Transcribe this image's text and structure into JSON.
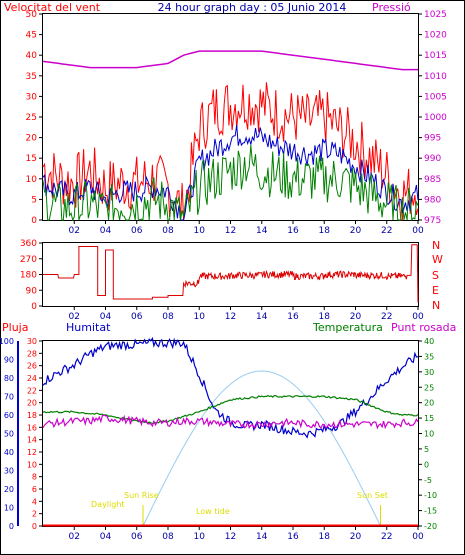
{
  "header": {
    "wind_label": "Velocitat del vent",
    "graph_title": "24 hour graph day : 05 Junio 2014",
    "pressure_label": "Pressió"
  },
  "direction_letters": [
    "N",
    "W",
    "S",
    "E",
    "N"
  ],
  "lower_header": {
    "rain_label": "Pluja",
    "humidity_label": "Humitat",
    "temperature_label": "Temperatura",
    "dewpoint_label": "Punt rosada"
  },
  "sun_events": [
    "Sun Rise",
    "Sun Set"
  ],
  "events": [
    "Daylight",
    "Low tide"
  ],
  "colors": {
    "wind_gust": "#ff0000",
    "wind_avg": "#0000cc",
    "wind_low": "#008000",
    "pressure": "#cc00cc",
    "direction": "#dd0000",
    "humidity": "#0000cc",
    "temperature": "#008000",
    "dewpoint": "#cc00cc",
    "rain": "#ff0000",
    "solar": "#99ccee",
    "events": "#dddd00"
  },
  "chart_data": [
    {
      "type": "line",
      "x_ticks": [
        "02",
        "04",
        "06",
        "08",
        "10",
        "12",
        "14",
        "16",
        "18",
        "20",
        "22",
        "00"
      ],
      "y_ticks_left": [
        0,
        5,
        10,
        15,
        20,
        25,
        30,
        35,
        40,
        45,
        50
      ],
      "y_ticks_right": [
        975,
        980,
        985,
        990,
        995,
        1000,
        1005,
        1010,
        1015,
        1020,
        1025
      ],
      "ylim_left": [
        0,
        50
      ],
      "ylim_right": [
        975,
        1025
      ],
      "x_hours": [
        0,
        1,
        2,
        3,
        4,
        5,
        6,
        7,
        8,
        9,
        10,
        11,
        12,
        13,
        14,
        15,
        16,
        17,
        18,
        19,
        20,
        21,
        22,
        23,
        24
      ],
      "series": [
        {
          "name": "Velocitat del vent",
          "values": [
            13,
            10,
            9,
            12,
            8,
            9,
            9,
            10,
            8,
            2,
            22,
            27,
            28,
            29,
            28,
            26,
            25,
            24,
            25,
            22,
            19,
            15,
            11,
            6,
            8
          ]
        },
        {
          "name": "",
          "values": [
            9,
            7,
            6,
            8,
            5,
            7,
            7,
            8,
            7,
            1,
            14,
            17,
            20,
            21,
            20,
            18,
            17,
            16,
            17,
            16,
            13,
            10,
            7,
            4,
            6
          ]
        },
        {
          "name": "",
          "values": [
            5,
            3,
            3,
            4,
            2,
            4,
            4,
            5,
            4,
            0,
            8,
            10,
            12,
            14,
            12,
            11,
            10,
            10,
            10,
            10,
            8,
            6,
            4,
            2,
            3
          ]
        },
        {
          "name": "Pressió",
          "values": [
            1013.5,
            1013,
            1012.5,
            1012,
            1012,
            1012,
            1012,
            1012.5,
            1013,
            1015,
            1016,
            1016,
            1016,
            1016,
            1016,
            1015.5,
            1015,
            1014.5,
            1014,
            1013.5,
            1013,
            1012.5,
            1012,
            1011.5,
            1011.5
          ]
        }
      ]
    },
    {
      "type": "line",
      "x_ticks": [
        "02",
        "04",
        "06",
        "08",
        "10",
        "12",
        "14",
        "16",
        "18",
        "20",
        "22",
        "00"
      ],
      "y_ticks": [
        0,
        90,
        180,
        270,
        360
      ],
      "ylim": [
        0,
        360
      ],
      "x_hours": [
        0,
        1,
        2,
        2.3,
        3.5,
        4,
        4.5,
        6,
        7,
        8,
        8.6,
        9,
        10,
        12,
        14,
        16,
        18,
        20,
        22,
        23.3,
        23.6,
        24
      ],
      "series": [
        {
          "name": "",
          "values": [
            180,
            160,
            180,
            340,
            60,
            320,
            40,
            40,
            50,
            60,
            60,
            130,
            170,
            175,
            180,
            170,
            180,
            175,
            170,
            175,
            350,
            20
          ]
        }
      ]
    },
    {
      "type": "line",
      "x_ticks": [
        "02",
        "04",
        "06",
        "08",
        "10",
        "12",
        "14",
        "16",
        "18",
        "20",
        "22",
        "00"
      ],
      "y_ticks_left": [
        0,
        10,
        20,
        30,
        40,
        50,
        60,
        70,
        80,
        90,
        100
      ],
      "y_ticks_rain": [
        0,
        2,
        4,
        6,
        8,
        10,
        12,
        14,
        16,
        18,
        20,
        22,
        24,
        26,
        28,
        30
      ],
      "y_ticks_right": [
        -20,
        -15,
        -10,
        -5,
        0,
        5,
        10,
        15,
        20,
        25,
        30,
        35,
        40
      ],
      "ylim_left": [
        0,
        100
      ],
      "ylim_right": [
        -20,
        40
      ],
      "x_hours": [
        0,
        1,
        2,
        3,
        4,
        5,
        6,
        7,
        8,
        9,
        10,
        11,
        12,
        13,
        14,
        15,
        16,
        17,
        18,
        19,
        20,
        21,
        22,
        23,
        24
      ],
      "series": [
        {
          "name": "Humitat",
          "values": [
            78,
            83,
            87,
            93,
            97,
            98,
            98,
            99,
            99,
            99,
            82,
            63,
            56,
            54,
            55,
            53,
            51,
            50,
            52,
            55,
            62,
            70,
            79,
            86,
            92
          ]
        },
        {
          "name": "Temperatura",
          "values": [
            17,
            17,
            17,
            16.5,
            16,
            15,
            14,
            13.5,
            14,
            15.5,
            17,
            19,
            21,
            21.5,
            22,
            22,
            22,
            22,
            22,
            21.5,
            21,
            19,
            17,
            16,
            16
          ]
        },
        {
          "name": "Punt rosada",
          "values": [
            13,
            13.5,
            14,
            14,
            15,
            14.5,
            14,
            13.5,
            13.5,
            14,
            14,
            13.5,
            13,
            13,
            13,
            13.5,
            13.5,
            13,
            13,
            13,
            13,
            13,
            13,
            13.5,
            13.5
          ]
        },
        {
          "name": "",
          "values": [
            0,
            0,
            0,
            0,
            0,
            0,
            0,
            0,
            0,
            0,
            0,
            0,
            0,
            0,
            0,
            0,
            0,
            0,
            0,
            0,
            0,
            0,
            0,
            0,
            0
          ]
        }
      ]
    }
  ]
}
